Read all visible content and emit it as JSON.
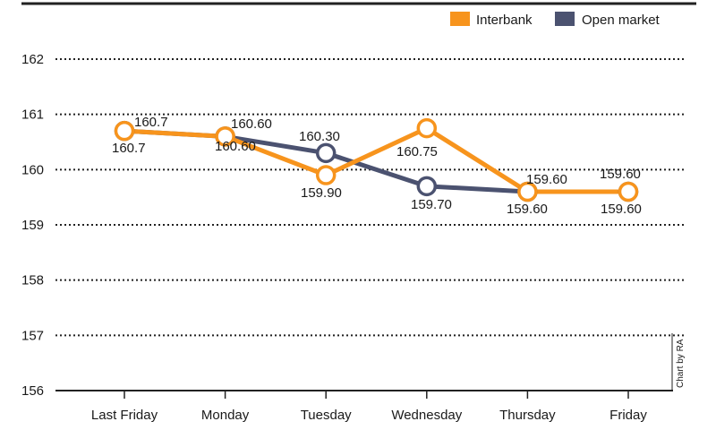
{
  "chart_data": {
    "type": "line",
    "categories": [
      "Last Friday",
      "Monday",
      "Tuesday",
      "Wednesday",
      "Thursday",
      "Friday"
    ],
    "series": [
      {
        "name": "Interbank",
        "color": "#f7941d",
        "values": [
          160.7,
          160.6,
          159.9,
          160.75,
          159.6,
          159.6
        ],
        "labels": [
          "160.7",
          "160.60",
          "159.90",
          "160.75",
          "159.60",
          "159.60"
        ]
      },
      {
        "name": "Open market",
        "color": "#4b5270",
        "values": [
          160.7,
          160.6,
          160.3,
          159.7,
          159.6,
          159.6
        ],
        "labels": [
          "160.7",
          "160.60",
          "160.30",
          "159.70",
          "159.60",
          "159.60"
        ]
      }
    ],
    "y_ticks": [
      "156",
      "157",
      "158",
      "159",
      "160",
      "161",
      "162"
    ],
    "ylim": [
      156,
      162
    ],
    "grid": true,
    "legend": "top-right",
    "credit": "Chart by RA"
  }
}
